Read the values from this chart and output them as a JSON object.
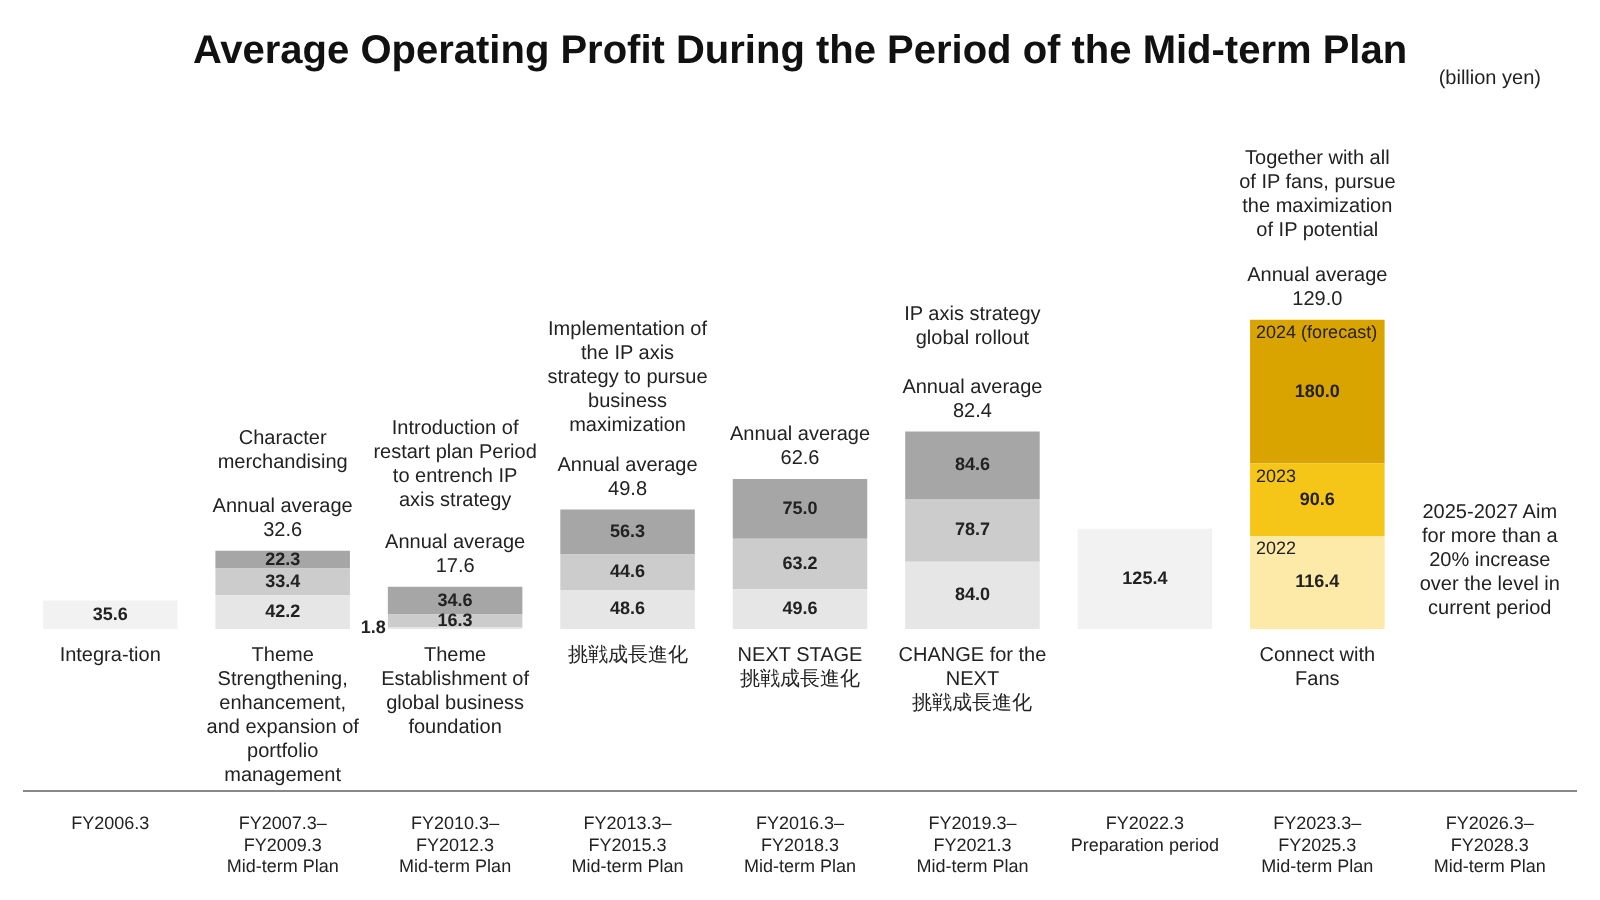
{
  "chart_data": {
    "type": "bar",
    "title": "Average Operating Profit During the Period of the Mid-term Plan",
    "categories": [
      "FY2006.3",
      "FY2007.3–FY2009.3 Mid-term Plan",
      "FY2010.3–FY2012.3 Mid-term Plan",
      "FY2013.3–FY2015.3 Mid-term Plan",
      "FY2016.3–FY2018.3 Mid-term Plan",
      "FY2019.3–FY2021.3 Mid-term Plan",
      "FY2022.3 Preparation period",
      "FY2023.3–FY2025.3 Mid-term Plan",
      "FY2026.3–FY2028.3 Mid-term Plan"
    ],
    "stacked": true,
    "data_labels": true,
    "legend": false,
    "series": [
      {
        "colors": [
          "#f2f2f2",
          "#e6e6e6",
          "#e6e6e6",
          "#e6e6e6",
          "#e6e6e6",
          "#e6e6e6",
          "#f2f2f2",
          "#fde9a8",
          "#ffffff"
        ],
        "values": [
          35.6,
          42.2,
          1.8,
          48.6,
          49.6,
          84.0,
          125.4,
          116.4,
          null
        ],
        "value_labels": [
          "35.6",
          "42.2",
          "1.8",
          "48.6",
          "49.6",
          "84.0",
          "125.4",
          "116.4",
          null
        ]
      },
      {
        "colors": [
          "#ffffff",
          "#cccccc",
          "#cccccc",
          "#cccccc",
          "#cccccc",
          "#cccccc",
          "#ffffff",
          "#f5c518",
          "#ffffff"
        ],
        "values": [
          null,
          33.4,
          16.3,
          44.6,
          63.2,
          78.7,
          null,
          90.6,
          null
        ],
        "value_labels": [
          null,
          "33.4",
          "16.3",
          "44.6",
          "63.2",
          "78.7",
          null,
          "90.6",
          null
        ]
      },
      {
        "colors": [
          "#ffffff",
          "#a6a6a6",
          "#a6a6a6",
          "#a6a6a6",
          "#a6a6a6",
          "#a6a6a6",
          "#ffffff",
          "#d9a300",
          "#ffffff"
        ],
        "values": [
          null,
          22.3,
          34.6,
          56.3,
          75.0,
          84.6,
          null,
          180.0,
          null
        ],
        "value_labels": [
          null,
          "22.3",
          "34.6",
          "56.3",
          "75.0",
          "84.6",
          null,
          "180.0",
          null
        ]
      }
    ],
    "annotations": [
      "(billion yen)",
      {
        "text": "Annual average 32.6",
        "x": "FY2007.3–FY2009.3 Mid-term Plan",
        "y": 97.9
      },
      {
        "text": "Annual average 17.6",
        "x": "FY2010.3–FY2012.3 Mid-term Plan",
        "y": 52.7
      },
      {
        "text": "Annual average 49.8",
        "x": "FY2013.3–FY2015.3 Mid-term Plan",
        "y": 149.5
      },
      {
        "text": "Annual average 62.6",
        "x": "FY2016.3–FY2018.3 Mid-term Plan",
        "y": 187.8
      },
      {
        "text": "Annual average 82.4",
        "x": "FY2019.3–FY2021.3 Mid-term Plan",
        "y": 247.3
      },
      {
        "text": "Annual average 129.0",
        "x": "FY2023.3–FY2025.3 Mid-term Plan",
        "y": 387.0
      },
      {
        "text": "2022",
        "x": "FY2023.3–FY2025.3 Mid-term Plan",
        "y": 116.4
      },
      {
        "text": "2023",
        "x": "FY2023.3–FY2025.3 Mid-term Plan",
        "y": 207.0
      },
      {
        "text": "2024 (forecast)",
        "x": "FY2023.3–FY2025.3 Mid-term Plan",
        "y": 387.0
      },
      "Character merchandising",
      "Introduction of restart plan Period to entrench IP axis strategy",
      "Implementation of the IP axis strategy to pursue business maximization",
      "IP axis strategy global rollout",
      "Together with all of IP fans, pursue the maximization of IP potential",
      "2025-2027 Aim for more than a 20% increase over the level in current period",
      "Integra-tion",
      "Theme Strengthening, enhancement, and expansion of portfolio management",
      "Theme Establishment of global business foundation",
      "挑戦成長進化",
      "NEXT STAGE 挑戦成長進化",
      "CHANGE for the NEXT 挑戦成長進化",
      "Connect with Fans"
    ]
  }
}
